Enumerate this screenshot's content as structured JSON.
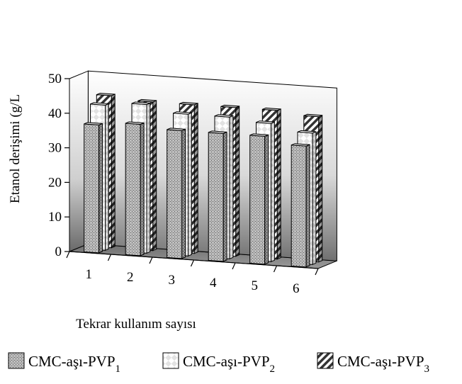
{
  "chart_data": {
    "type": "bar",
    "subtype": "3d-clustered-column",
    "ylabel": "Etanol derişimi (g/L",
    "xlabel": "Tekrar kullanım sayısı",
    "ylim": [
      0,
      50
    ],
    "yticks": [
      0,
      10,
      20,
      30,
      40,
      50
    ],
    "categories": [
      "1",
      "2",
      "3",
      "4",
      "5",
      "6"
    ],
    "series": [
      {
        "name": "CMC-aşı-PVP",
        "subscript": "1",
        "pattern": "dots",
        "values": [
          37,
          38,
          37,
          37,
          37,
          35
        ]
      },
      {
        "name": "CMC-aşı-PVP",
        "subscript": "2",
        "pattern": "checker",
        "values": [
          42,
          43,
          41,
          41,
          40,
          38
        ]
      },
      {
        "name": "CMC-aşı-PVP",
        "subscript": "3",
        "pattern": "diagonal-stripes",
        "values": [
          44,
          43,
          43,
          43,
          43,
          42
        ]
      }
    ],
    "legend_position": "bottom",
    "grid": false
  }
}
